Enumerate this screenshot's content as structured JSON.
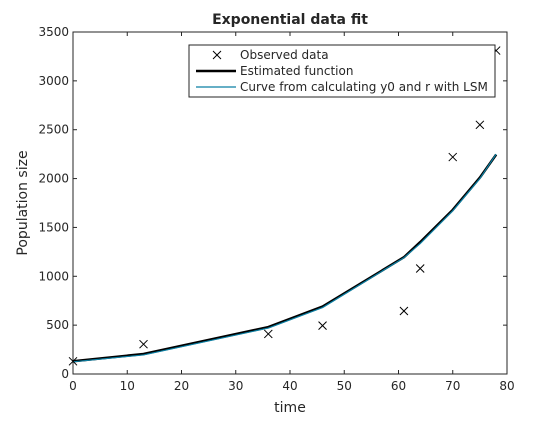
{
  "chart_data": {
    "type": "line",
    "title": "Exponential data fit",
    "xlabel": "time",
    "ylabel": "Population size",
    "xlim": [
      0,
      80
    ],
    "ylim": [
      0,
      3500
    ],
    "xticks": [
      0,
      10,
      20,
      30,
      40,
      50,
      60,
      70,
      80
    ],
    "yticks": [
      0,
      500,
      1000,
      1500,
      2000,
      2500,
      3000,
      3500
    ],
    "grid": false,
    "legend_position": "top-right",
    "series": [
      {
        "name": "Observed data",
        "style": "markers",
        "marker": "x",
        "color": "#000000",
        "x": [
          0,
          13,
          36,
          46,
          61,
          64,
          70,
          75,
          78
        ],
        "y": [
          130,
          305,
          410,
          495,
          645,
          1080,
          2220,
          2550,
          3310
        ]
      },
      {
        "name": "Estimated function",
        "style": "line",
        "color": "#000000",
        "x": [
          0,
          13,
          36,
          46,
          61,
          64,
          70,
          75,
          78
        ],
        "y": [
          130,
          205,
          480,
          690,
          1195,
          1350,
          1680,
          2010,
          2245
        ]
      },
      {
        "name": "Curve from calculating y0 and r with LSM",
        "style": "line",
        "color": "#0b7fa3",
        "x": [
          0,
          13,
          36,
          46,
          61,
          64,
          70,
          75,
          78
        ],
        "y": [
          125,
          195,
          470,
          680,
          1190,
          1335,
          1670,
          2000,
          2250
        ]
      }
    ]
  }
}
